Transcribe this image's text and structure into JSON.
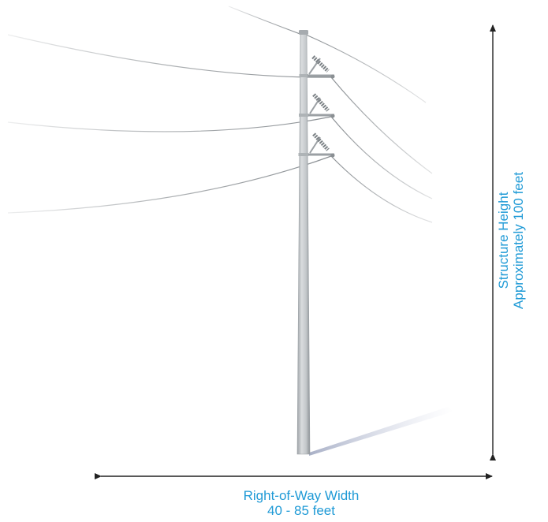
{
  "diagram": {
    "subject": "single-pole-transmission-structure",
    "structure_height": {
      "title": "Structure Height",
      "value": "Approximately 100 feet"
    },
    "right_of_way": {
      "title": "Right-of-Way Width",
      "value": "40 - 85 feet"
    },
    "colors": {
      "label_text": "#1f9ad6",
      "dimension_arrows": "#222222",
      "pole": "#b9bdc0",
      "conductors": "#8a8f93"
    }
  }
}
